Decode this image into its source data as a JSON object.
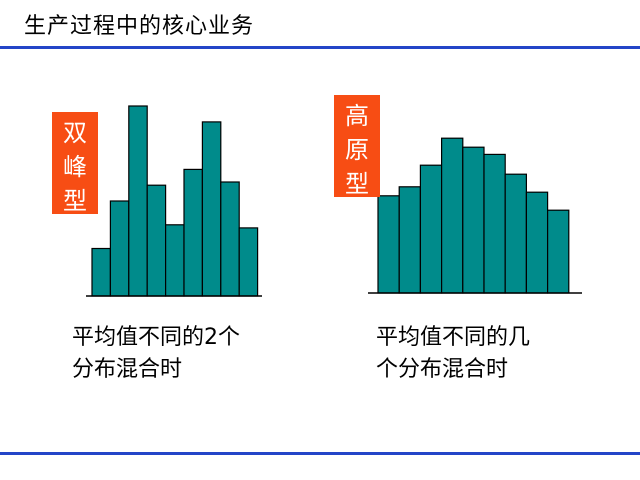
{
  "title": "生产过程中的核心业务",
  "panels": [
    {
      "label_chars": [
        "双",
        "峰",
        "型"
      ],
      "caption_lines": [
        "平均值不同的2个",
        "分布混合时"
      ]
    },
    {
      "label_chars": [
        "高",
        "原",
        "型"
      ],
      "caption_lines": [
        "平均值不同的几",
        "个分布混合时"
      ]
    }
  ],
  "colors": {
    "bar_fill": "#008b8b",
    "label_bg": "#f74d14",
    "rule": "#2345c8"
  },
  "chart_data": [
    {
      "type": "bar",
      "values": [
        3,
        6,
        12,
        7,
        4.5,
        8,
        11,
        7.2,
        4.3
      ]
    },
    {
      "type": "bar",
      "values": [
        5.4,
        5.9,
        7.1,
        8.6,
        8.1,
        7.7,
        6.6,
        5.6,
        4.6
      ]
    }
  ]
}
